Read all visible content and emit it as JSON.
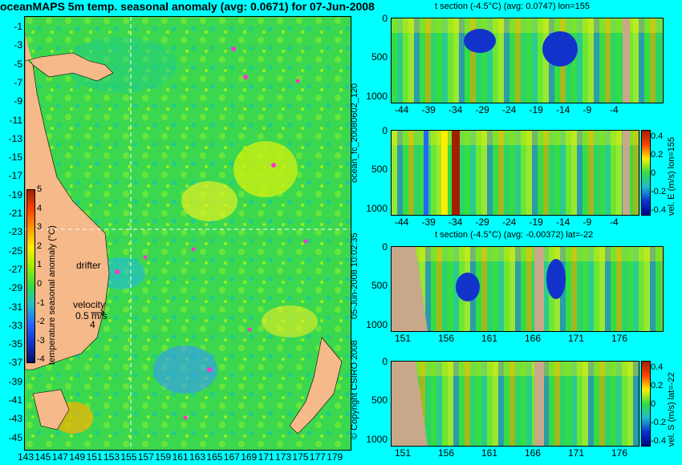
{
  "map": {
    "title": "oceanMAPS 5m temp. seasonal anomaly (avg: 0.0671) for 07-Jun-2008",
    "lat_labels": [
      "-1",
      "-3",
      "-5",
      "-7",
      "-9",
      "-11",
      "-13",
      "-15",
      "-17",
      "-19",
      "-21",
      "-23",
      "-25",
      "-27",
      "-29",
      "-31",
      "-33",
      "-35",
      "-37",
      "-39",
      "-41",
      "-43",
      "-45"
    ],
    "lon_labels": [
      "143",
      "145",
      "147",
      "149",
      "151",
      "153",
      "155",
      "157",
      "159",
      "161",
      "163",
      "165",
      "167",
      "169",
      "171",
      "173",
      "175",
      "177",
      "179"
    ],
    "colorbar_label": "temperature seasonal anomaly (°C)",
    "colorbar_ticks": [
      "5",
      "4",
      "3",
      "2",
      "1",
      "0",
      "-1",
      "-2",
      "-3",
      "-4"
    ],
    "annotations": {
      "drifter": "drifter",
      "velocity": "velocity",
      "velocity_scale": "0.5 m/s",
      "velocity_days": "4"
    },
    "colors": {
      "land": "#f5b98a",
      "ocean": "#33dd55",
      "contour": "#88f0f0",
      "crosshair": "#ffffff",
      "marker": "#ff33cc"
    }
  },
  "sections": [
    {
      "title": "t section (-4.5°C) (avg: 0.0747) lon=155",
      "x_ticks": [
        "-44",
        "-39",
        "-34",
        "-29",
        "-24",
        "-19",
        "-14",
        "-9",
        "-4"
      ],
      "y_ticks": [
        "0",
        "500",
        "1000"
      ]
    },
    {
      "title": "",
      "x_ticks": [
        "-44",
        "-39",
        "-34",
        "-29",
        "-24",
        "-19",
        "-14",
        "-9",
        "-4"
      ],
      "y_ticks": [
        "0",
        "500",
        "1000"
      ],
      "colorbar_label": "vel. E (m/s) lon=155",
      "colorbar_ticks": [
        "0.4",
        "0.2",
        "0",
        "-0.2",
        "-0.4"
      ]
    },
    {
      "title": "t section (-4.5°C) (avg: -0.00372) lat=-22",
      "x_ticks": [
        "151",
        "156",
        "161",
        "166",
        "171",
        "176"
      ],
      "y_ticks": [
        "0",
        "500",
        "1000"
      ]
    },
    {
      "title": "",
      "x_ticks": [
        "151",
        "156",
        "161",
        "166",
        "171",
        "176"
      ],
      "y_ticks": [
        "0",
        "500",
        "1000"
      ],
      "colorbar_label": "vel. S (m/s) lat=-22",
      "colorbar_ticks": [
        "0.4",
        "0.2",
        "0",
        "-0.2",
        "-0.4"
      ]
    }
  ],
  "side_labels": {
    "forecast_top": "ocean_fc_20080602_120",
    "forecast_bottom": "05-Jun-2008 10:02:35",
    "copyright": "© Copyright CSIRO 2008"
  }
}
